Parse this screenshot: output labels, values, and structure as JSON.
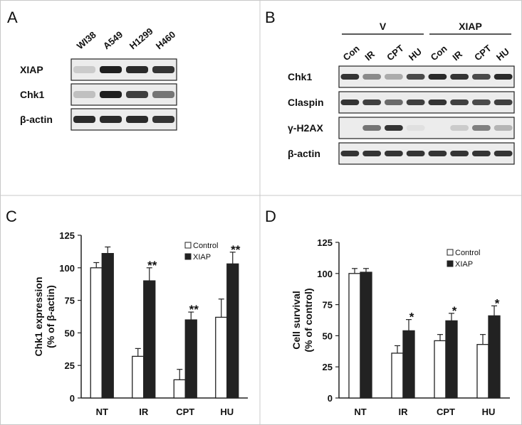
{
  "panel_labels": {
    "a": "A",
    "b": "B",
    "c": "C",
    "d": "D"
  },
  "blot_a": {
    "lanes": [
      "WI38",
      "A549",
      "H1299",
      "H460"
    ],
    "rows": [
      {
        "label": "XIAP",
        "intensity": [
          0.15,
          0.95,
          0.9,
          0.85
        ]
      },
      {
        "label": "Chk1",
        "intensity": [
          0.2,
          0.95,
          0.8,
          0.55
        ]
      },
      {
        "label": "β-actin",
        "intensity": [
          0.9,
          0.9,
          0.9,
          0.85
        ]
      }
    ]
  },
  "blot_b": {
    "groups": [
      {
        "label": "V",
        "lanes": [
          "Con",
          "IR",
          "CPT",
          "HU"
        ]
      },
      {
        "label": "XIAP",
        "lanes": [
          "Con",
          "IR",
          "CPT",
          "HU"
        ]
      }
    ],
    "rows": [
      {
        "label": "Chk1",
        "intensity": [
          0.85,
          0.45,
          0.3,
          0.75,
          0.9,
          0.85,
          0.75,
          0.9
        ]
      },
      {
        "label": "Claspin",
        "intensity": [
          0.85,
          0.8,
          0.6,
          0.8,
          0.85,
          0.8,
          0.75,
          0.8
        ]
      },
      {
        "label": "γ-H2AX",
        "intensity": [
          0.0,
          0.55,
          0.85,
          0.05,
          0.0,
          0.15,
          0.5,
          0.25
        ]
      },
      {
        "label": "β-actin",
        "intensity": [
          0.85,
          0.85,
          0.85,
          0.85,
          0.85,
          0.85,
          0.85,
          0.85
        ]
      }
    ]
  },
  "chart_data": [
    {
      "type": "bar",
      "panel": "C",
      "categories": [
        "NT",
        "IR",
        "CPT",
        "HU"
      ],
      "series": [
        {
          "name": "Control",
          "color": "#ffffff",
          "values": [
            100,
            32,
            14,
            62
          ],
          "errors": [
            4,
            6,
            8,
            14
          ]
        },
        {
          "name": "XIAP",
          "color": "#222222",
          "values": [
            111,
            90,
            60,
            103
          ],
          "errors": [
            5,
            10,
            6,
            9
          ]
        }
      ],
      "annotations": [
        "",
        "**",
        "**",
        "**"
      ],
      "ylabel": [
        "Chk1 expression",
        "(% of β-actin)"
      ],
      "xlabel": "",
      "ylim": [
        0,
        125
      ],
      "yticks": [
        0,
        25,
        50,
        75,
        100,
        125
      ],
      "legend_position": "top-right"
    },
    {
      "type": "bar",
      "panel": "D",
      "categories": [
        "NT",
        "IR",
        "CPT",
        "HU"
      ],
      "series": [
        {
          "name": "Control",
          "color": "#ffffff",
          "values": [
            100,
            36,
            46,
            43
          ],
          "errors": [
            4,
            6,
            5,
            8
          ]
        },
        {
          "name": "XIAP",
          "color": "#222222",
          "values": [
            101,
            54,
            62,
            66
          ],
          "errors": [
            3,
            9,
            6,
            8
          ]
        }
      ],
      "annotations": [
        "",
        "*",
        "*",
        "*"
      ],
      "ylabel": [
        "Cell survival",
        "(% of control)"
      ],
      "xlabel": "",
      "ylim": [
        0,
        125
      ],
      "yticks": [
        0,
        25,
        50,
        75,
        100,
        125
      ],
      "legend_position": "top-right"
    }
  ]
}
